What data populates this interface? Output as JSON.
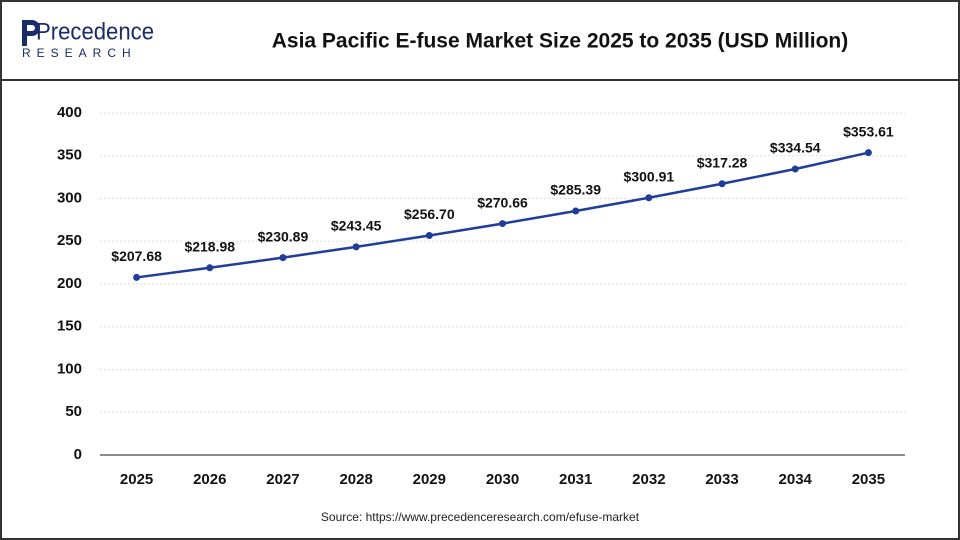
{
  "logo": {
    "name": "Precedence",
    "tagline": "RESEARCH"
  },
  "chart_data": {
    "type": "line",
    "title": "Asia Pacific E-fuse Market Size 2025 to 2035 (USD Million)",
    "categories": [
      "2025",
      "2026",
      "2027",
      "2028",
      "2029",
      "2030",
      "2031",
      "2032",
      "2033",
      "2034",
      "2035"
    ],
    "series": [
      {
        "name": "Market Size",
        "color": "#1f3d99",
        "values": [
          207.68,
          218.98,
          230.89,
          243.45,
          256.7,
          270.66,
          285.39,
          300.91,
          317.28,
          334.54,
          353.61
        ],
        "value_labels": [
          "$207.68",
          "$218.98",
          "$230.89",
          "$243.45",
          "$256.70",
          "$270.66",
          "$285.39",
          "$300.91",
          "$317.28",
          "$334.54",
          "$353.61"
        ]
      }
    ],
    "ylim": [
      0,
      400
    ],
    "yticks": [
      0,
      50,
      100,
      150,
      200,
      250,
      300,
      350,
      400
    ],
    "grid": true,
    "source": "Source: https://www.precedenceresearch.com/efuse-market"
  }
}
